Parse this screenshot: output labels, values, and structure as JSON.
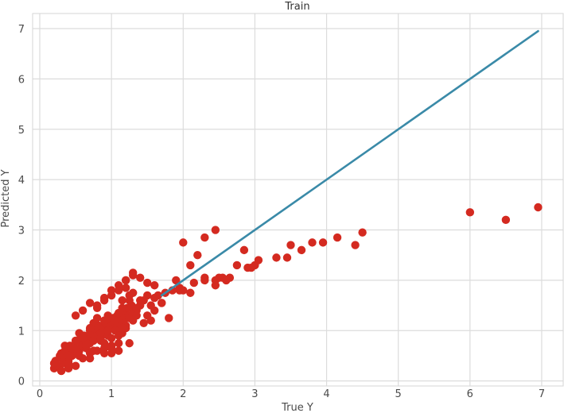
{
  "chart_data": {
    "type": "scatter",
    "title": "Train",
    "xlabel": "True Y",
    "ylabel": "Predicted Y",
    "xlim": [
      -0.1,
      7.3
    ],
    "ylim": [
      -0.1,
      7.3
    ],
    "xticks": [
      0,
      1,
      2,
      3,
      4,
      5,
      6,
      7
    ],
    "yticks": [
      0,
      1,
      2,
      3,
      4,
      5,
      6,
      7
    ],
    "grid": true,
    "legend": "none",
    "colors": {
      "points": "#d42a20",
      "line": "#3a8aa8",
      "grid": "#dcdcdc",
      "frame": "#d6d6d6"
    },
    "series": [
      {
        "kind": "points",
        "x": [
          0.2,
          0.22,
          0.25,
          0.28,
          0.3,
          0.33,
          0.35,
          0.38,
          0.4,
          0.42,
          0.45,
          0.48,
          0.5,
          0.52,
          0.55,
          0.58,
          0.6,
          0.62,
          0.65,
          0.68,
          0.7,
          0.72,
          0.75,
          0.78,
          0.8,
          0.82,
          0.85,
          0.88,
          0.9,
          0.92,
          0.95,
          0.98,
          1.0,
          1.02,
          1.05,
          1.08,
          1.1,
          1.12,
          1.15,
          1.18,
          1.2,
          1.22,
          1.25,
          1.28,
          1.3,
          0.25,
          0.3,
          0.35,
          0.4,
          0.45,
          0.5,
          0.55,
          0.6,
          0.65,
          0.7,
          0.75,
          0.8,
          0.85,
          0.9,
          0.95,
          1.0,
          1.05,
          1.1,
          1.15,
          1.2,
          1.25,
          1.3,
          1.35,
          1.4,
          0.3,
          0.4,
          0.5,
          0.6,
          0.7,
          0.8,
          0.9,
          1.0,
          1.1,
          1.2,
          0.35,
          0.45,
          0.55,
          0.65,
          0.75,
          0.85,
          0.95,
          1.05,
          1.15,
          1.25,
          0.2,
          0.3,
          0.4,
          0.5,
          0.6,
          0.7,
          0.8,
          0.9,
          1.0,
          1.1,
          0.5,
          0.6,
          0.7,
          0.8,
          0.9,
          1.0,
          1.1,
          1.2,
          1.3,
          1.4,
          1.5,
          1.6,
          1.7,
          0.8,
          0.9,
          1.0,
          1.1,
          1.2,
          1.3,
          1.4,
          1.5,
          1.6,
          1.65,
          1.75,
          1.85,
          1.95,
          0.95,
          1.05,
          1.15,
          1.25,
          1.35,
          1.45,
          1.55,
          1.0,
          1.2,
          1.3,
          1.5,
          1.7,
          1.8,
          1.0,
          1.1,
          1.25,
          1.45,
          1.6,
          0.7,
          0.9,
          1.15,
          1.35,
          1.55,
          2.0,
          2.3,
          2.5,
          2.55,
          2.65,
          2.75,
          2.9,
          2.95,
          3.05,
          3.3,
          3.45,
          3.65,
          3.8,
          3.95,
          4.15,
          4.4,
          4.5,
          2.1,
          2.2,
          2.3,
          2.45,
          1.9,
          2.0,
          2.1,
          3.5,
          3.0,
          2.85,
          2.45,
          1.95,
          2.15,
          2.3,
          6.0,
          6.5,
          6.95,
          2.45,
          2.6
        ],
        "y": [
          0.25,
          0.4,
          0.3,
          0.5,
          0.45,
          0.35,
          0.6,
          0.55,
          0.4,
          0.7,
          0.5,
          0.65,
          0.55,
          0.8,
          0.6,
          0.75,
          0.7,
          0.9,
          0.65,
          0.85,
          0.75,
          0.95,
          0.8,
          1.0,
          0.9,
          1.1,
          0.85,
          1.05,
          0.95,
          1.15,
          1.0,
          1.2,
          1.1,
          1.25,
          1.05,
          1.3,
          1.15,
          1.35,
          1.2,
          1.4,
          1.25,
          1.45,
          1.3,
          1.5,
          1.35,
          0.3,
          0.55,
          0.45,
          0.35,
          0.6,
          0.8,
          0.5,
          0.9,
          0.7,
          1.0,
          0.6,
          1.1,
          0.8,
          1.2,
          0.9,
          0.7,
          1.0,
          1.35,
          0.95,
          1.1,
          1.6,
          1.2,
          1.4,
          1.5,
          0.2,
          0.25,
          0.3,
          0.45,
          0.55,
          0.6,
          0.75,
          0.85,
          0.9,
          1.05,
          0.7,
          0.65,
          0.95,
          0.75,
          1.15,
          0.95,
          1.3,
          1.15,
          1.45,
          1.25,
          0.35,
          0.2,
          0.5,
          0.65,
          0.85,
          1.05,
          1.25,
          0.55,
          0.65,
          0.75,
          1.3,
          1.4,
          1.55,
          1.5,
          1.65,
          1.7,
          1.8,
          1.85,
          1.75,
          1.6,
          1.7,
          1.65,
          1.55,
          1.45,
          1.6,
          1.8,
          1.9,
          2.0,
          2.1,
          2.05,
          1.95,
          1.9,
          1.7,
          1.75,
          1.8,
          1.85,
          1.0,
          1.2,
          1.6,
          1.7,
          1.45,
          1.6,
          1.5,
          1.8,
          2.0,
          2.15,
          1.3,
          1.55,
          1.25,
          0.55,
          0.6,
          0.75,
          1.15,
          1.4,
          0.45,
          0.65,
          1.05,
          1.3,
          1.2,
          2.75,
          2.85,
          2.05,
          2.05,
          2.05,
          2.3,
          2.25,
          2.25,
          2.4,
          2.45,
          2.45,
          2.6,
          2.75,
          2.75,
          2.85,
          2.7,
          2.95,
          2.3,
          2.5,
          2.0,
          2.0,
          2.0,
          1.8,
          1.75,
          2.7,
          2.3,
          2.6,
          1.9,
          1.8,
          1.95,
          2.05,
          3.35,
          3.2,
          3.45,
          3.0,
          2.0
        ]
      },
      {
        "kind": "line",
        "x": [
          1.7,
          6.95
        ],
        "y": [
          1.7,
          6.95
        ]
      }
    ]
  }
}
